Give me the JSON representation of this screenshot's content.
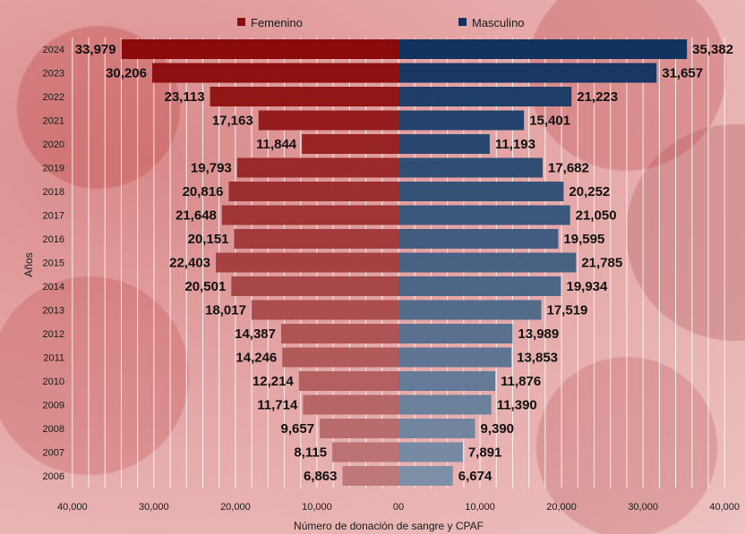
{
  "chart_data": {
    "type": "bar",
    "orientation": "horizontal-population-pyramid",
    "title": "",
    "xlabel": "Número de donación de sangre y CPAF",
    "ylabel": "Años",
    "xlim": [
      -40000,
      40000
    ],
    "x_tick_labels": [
      "40,000",
      "30,000",
      "20,000",
      "10,000",
      "00",
      "10,000",
      "20,000",
      "30,000",
      "40,000"
    ],
    "categories": [
      "2024",
      "2023",
      "2022",
      "2021",
      "2020",
      "2019",
      "2018",
      "2017",
      "2016",
      "2015",
      "2014",
      "2013",
      "2012",
      "2011",
      "2010",
      "2009",
      "2008",
      "2007",
      "2006"
    ],
    "series": [
      {
        "name": "Femenino",
        "color": "#8b0a0a",
        "values": [
          33979,
          30206,
          23113,
          17163,
          11844,
          19793,
          20816,
          21648,
          20151,
          22403,
          20501,
          18017,
          14387,
          14246,
          12214,
          11714,
          9657,
          8115,
          6863
        ],
        "labels": [
          "33,979",
          "30,206",
          "23,113",
          "17,163",
          "11,844",
          "19,793",
          "20,816",
          "21,648",
          "20,151",
          "22,403",
          "20,501",
          "18,017",
          "14,387",
          "14,246",
          "12,214",
          "11,714",
          "9,657",
          "8,115",
          "6,863"
        ]
      },
      {
        "name": "Masculino",
        "color": "#12335f",
        "values": [
          35382,
          31657,
          21223,
          15401,
          11193,
          17682,
          20252,
          21050,
          19595,
          21785,
          19934,
          17519,
          13989,
          13853,
          11876,
          11390,
          9390,
          7891,
          6674
        ],
        "labels": [
          "35,382",
          "31,657",
          "21,223",
          "15,401",
          "11,193",
          "17,682",
          "20,252",
          "21,050",
          "19,595",
          "21,785",
          "19,934",
          "17,519",
          "13,989",
          "13,853",
          "11,876",
          "11,390",
          "9,390",
          "7,891",
          "6,674"
        ]
      }
    ],
    "legend_position": "top",
    "grid": true
  }
}
